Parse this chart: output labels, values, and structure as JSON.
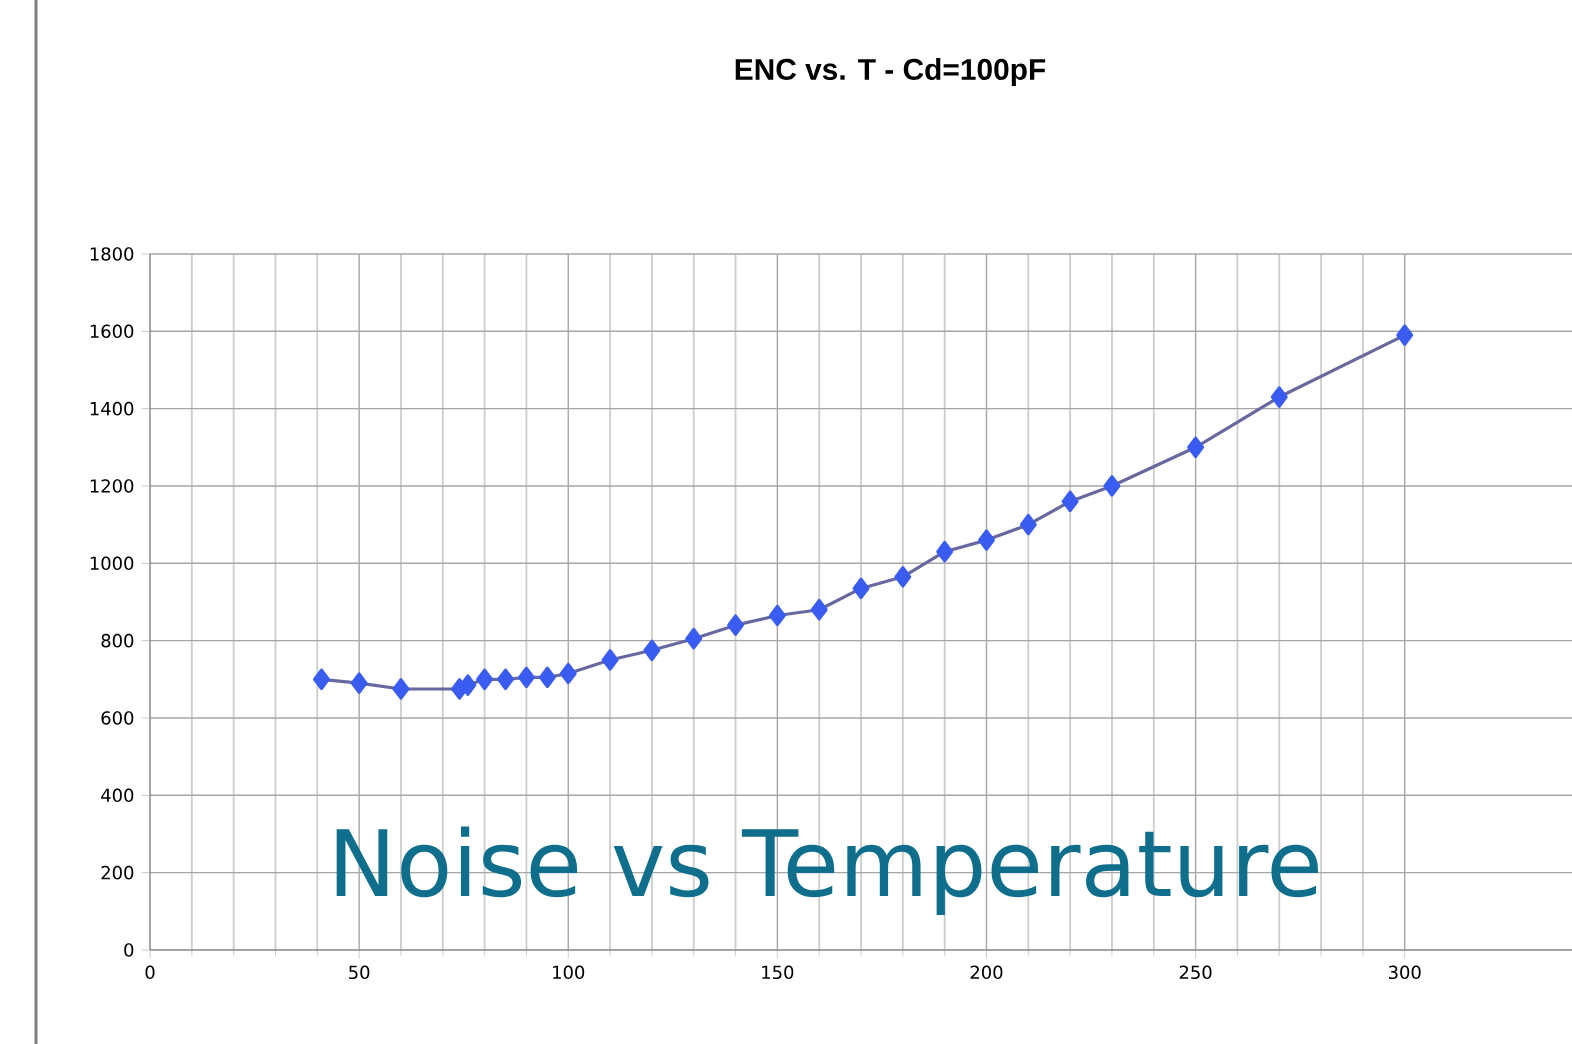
{
  "chart_data": {
    "type": "line",
    "title": "ENC vs. T - Cd=100pF",
    "annotations": [
      "Noise vs Temperature"
    ],
    "x": [
      41,
      50,
      60,
      74,
      76,
      80,
      85,
      90,
      95,
      100,
      110,
      120,
      130,
      140,
      150,
      160,
      170,
      180,
      190,
      200,
      210,
      220,
      230,
      250,
      270,
      300
    ],
    "series": [
      {
        "color": "#6868a0",
        "values": [
          700,
          690,
          675,
          675,
          685,
          700,
          700,
          705,
          705,
          715,
          750,
          775,
          805,
          840,
          865,
          880,
          935,
          965,
          1030,
          1060,
          1100,
          1160,
          1200,
          1300,
          1430,
          1590
        ]
      }
    ],
    "xlim": [
      0,
      340
    ],
    "ylim": [
      0,
      1800
    ],
    "xticks": [
      0,
      50,
      100,
      150,
      200,
      250,
      300
    ],
    "yticks": [
      0,
      200,
      400,
      600,
      800,
      1000,
      1200,
      1400,
      1600,
      1800
    ],
    "grid": true,
    "marker": "diamond",
    "line_style": "solid"
  }
}
